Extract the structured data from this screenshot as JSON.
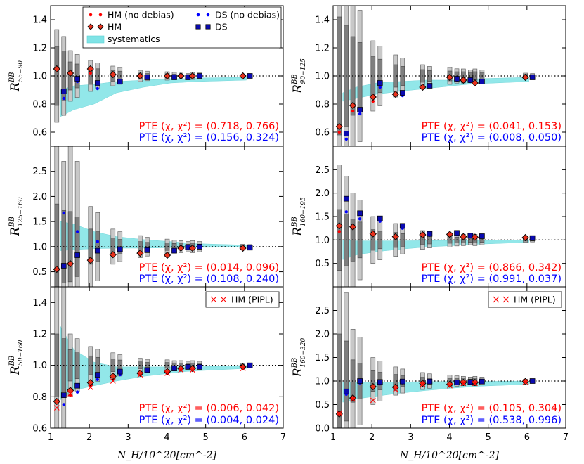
{
  "chart_data": {
    "type": "scatter",
    "x": [
      1.25,
      1.6,
      2.12,
      2.7,
      3.4,
      4.1,
      4.45,
      4.75,
      6.05
    ],
    "xlabel": "N_H/10^20[cm^-2]",
    "xlim": [
      1,
      7
    ],
    "xticks": [
      "1",
      "2",
      "3",
      "4",
      "5",
      "6",
      "7"
    ],
    "colors": {
      "hm": "#ff0000",
      "ds": "#0000ff",
      "syst": "#7fe3e6",
      "box_light": "#c8c8c8",
      "box_dark": "#7f7f7f"
    },
    "legend_main": {
      "hm_nodebias": "HM (no debias)",
      "ds_nodebias": "DS (no debias)",
      "hm": "HM",
      "ds": "DS",
      "systematics": "systematics"
    },
    "legend_pipl": "HM (PIPL)",
    "panels": [
      {
        "ylabel_main": "R",
        "ylabel_sup": "BB",
        "ylabel_sub": "55−90",
        "ylim": [
          0.5,
          1.5
        ],
        "yticks": [
          "0.6",
          "0.8",
          "1.0",
          "1.2",
          "1.4"
        ],
        "hm": [
          1.05,
          1.02,
          1.05,
          1.01,
          1.0,
          1.0,
          1.0,
          1.0,
          1.0
        ],
        "hm_nodebias": [
          1.05,
          1.01,
          1.02,
          1.02,
          1.0,
          1.01,
          1.0,
          1.0,
          1.0
        ],
        "ds": [
          0.89,
          0.98,
          0.95,
          0.96,
          0.99,
          0.99,
          0.99,
          1.0,
          1.0
        ],
        "ds_nodebias": [
          0.84,
          0.96,
          0.91,
          0.96,
          0.99,
          1.0,
          0.99,
          1.0,
          1.0
        ],
        "hm_pipl": null,
        "err_light": [
          0.33,
          0.18,
          0.11,
          0.07,
          0.04,
          0.03,
          0.02,
          0.025,
          0.01
        ],
        "err_dark": [
          0.21,
          0.1,
          0.06,
          0.04,
          0.02,
          0.015,
          0.012,
          0.012,
          0.006
        ],
        "syst_lower": [
          0.71,
          0.76,
          0.8,
          0.88,
          0.92,
          0.95,
          0.955,
          0.96,
          0.97
        ],
        "syst_upper": [
          0.9,
          0.93,
          0.94,
          0.96,
          0.97,
          0.98,
          0.98,
          0.985,
          0.99
        ],
        "pte_hm": "PTE (χ, χ²) = (0.718, 0.766)",
        "pte_ds": "PTE (χ, χ²) = (0.156, 0.324)"
      },
      {
        "ylabel_main": "R",
        "ylabel_sup": "BB",
        "ylabel_sub": "90−125",
        "ylim": [
          0.5,
          1.5
        ],
        "yticks": [
          "0.6",
          "0.8",
          "1.0",
          "1.2",
          "1.4"
        ],
        "hm": [
          0.64,
          0.79,
          0.85,
          0.87,
          0.92,
          0.99,
          0.97,
          0.95,
          0.99
        ],
        "hm_nodebias": [
          0.6,
          0.75,
          0.82,
          0.86,
          0.91,
          0.98,
          0.96,
          0.95,
          0.99
        ],
        "ds": [
          0.59,
          0.76,
          0.95,
          0.88,
          0.93,
          0.98,
          0.97,
          0.96,
          0.99
        ],
        "ds_nodebias": [
          0.55,
          0.73,
          0.92,
          0.86,
          0.93,
          0.97,
          0.96,
          0.96,
          0.99
        ],
        "hm_pipl": null,
        "err_light": [
          1.1,
          0.55,
          0.25,
          0.15,
          0.08,
          0.06,
          0.05,
          0.05,
          0.02
        ],
        "err_dark": [
          0.42,
          0.28,
          0.14,
          0.08,
          0.045,
          0.035,
          0.03,
          0.03,
          0.012
        ],
        "syst_lower": [
          0.82,
          0.84,
          0.87,
          0.89,
          0.91,
          0.93,
          0.94,
          0.945,
          0.96
        ],
        "syst_upper": [
          0.88,
          0.92,
          0.95,
          0.96,
          0.97,
          0.97,
          0.975,
          0.98,
          0.99
        ],
        "pte_hm": "PTE (χ, χ²) = (0.041, 0.153)",
        "pte_ds": "PTE (χ, χ²) = (0.008, 0.050)"
      },
      {
        "ylabel_main": "R",
        "ylabel_sup": "BB",
        "ylabel_sub": "125−160",
        "ylim": [
          0.2,
          3.0
        ],
        "yticks": [
          "0.5",
          "1.0",
          "1.5",
          "2.0",
          "2.5"
        ],
        "hm": [
          0.55,
          0.66,
          0.73,
          0.84,
          0.87,
          0.83,
          0.97,
          0.97,
          0.97
        ],
        "hm_nodebias": [
          0.53,
          0.63,
          0.72,
          0.83,
          0.87,
          0.82,
          0.96,
          0.97,
          0.97
        ],
        "ds": [
          0.62,
          0.83,
          0.92,
          0.95,
          0.93,
          0.92,
          0.99,
          1.0,
          0.98
        ],
        "ds_nodebias": [
          1.67,
          1.3,
          1.1,
          0.93,
          0.92,
          0.91,
          0.97,
          0.99,
          0.97
        ],
        "hm_pipl": null,
        "err_light": [
          2.0,
          2.0,
          0.8,
          0.35,
          0.22,
          0.15,
          0.12,
          0.12,
          0.05
        ],
        "err_dark": [
          0.85,
          0.7,
          0.35,
          0.17,
          0.1,
          0.075,
          0.06,
          0.06,
          0.03
        ],
        "syst_lower": [
          0.92,
          0.94,
          0.96,
          0.97,
          0.97,
          0.98,
          0.98,
          0.985,
          0.99
        ],
        "syst_upper": [
          1.5,
          1.45,
          1.3,
          1.2,
          1.14,
          1.1,
          1.08,
          1.06,
          1.03
        ],
        "pte_hm": "PTE (χ, χ²) = (0.014, 0.096)",
        "pte_ds": "PTE (χ, χ²) = (0.108, 0.240)"
      },
      {
        "ylabel_main": "R",
        "ylabel_sup": "BB",
        "ylabel_sub": "160−195",
        "ylim": [
          0.0,
          3.0
        ],
        "yticks": [
          "0.5",
          "1.0",
          "1.5",
          "2.0",
          "2.5"
        ],
        "hm": [
          1.3,
          1.28,
          1.13,
          1.07,
          1.11,
          1.12,
          1.07,
          1.06,
          1.05
        ],
        "hm_nodebias": [
          1.18,
          1.25,
          1.12,
          1.05,
          1.1,
          1.1,
          1.07,
          1.05,
          1.04
        ],
        "ds": [
          1.88,
          1.57,
          1.46,
          1.3,
          1.13,
          1.15,
          1.09,
          1.08,
          1.04
        ],
        "ds_nodebias": [
          1.6,
          1.45,
          1.4,
          1.25,
          1.1,
          1.11,
          1.07,
          1.06,
          1.03
        ],
        "hm_pipl": null,
        "err_light": [
          1.6,
          1.0,
          0.5,
          0.35,
          0.2,
          0.15,
          0.12,
          0.12,
          0.05
        ],
        "err_dark": [
          0.65,
          0.45,
          0.22,
          0.16,
          0.1,
          0.07,
          0.06,
          0.06,
          0.025
        ],
        "syst_lower": [
          0.58,
          0.68,
          0.75,
          0.8,
          0.85,
          0.88,
          0.9,
          0.91,
          0.95
        ],
        "syst_upper": [
          1.0,
          0.98,
          0.98,
          0.98,
          0.985,
          0.99,
          0.99,
          0.99,
          1.0
        ],
        "pte_hm": "PTE (χ, χ²) = (0.866, 0.342)",
        "pte_ds": "PTE (χ, χ²) = (0.991, 0.037)"
      },
      {
        "ylabel_main": "R",
        "ylabel_sup": "BB",
        "ylabel_sub": "50−160",
        "ylim": [
          0.6,
          1.5
        ],
        "yticks": [
          "0.6",
          "0.8",
          "1.0",
          "1.2",
          "1.4"
        ],
        "hm": [
          0.77,
          0.84,
          0.89,
          0.93,
          0.95,
          0.96,
          0.98,
          0.98,
          0.99
        ],
        "hm_nodebias": [
          0.76,
          0.81,
          0.87,
          0.91,
          0.94,
          0.96,
          0.97,
          0.98,
          0.99
        ],
        "ds": [
          0.81,
          0.87,
          0.94,
          0.96,
          0.97,
          0.98,
          0.99,
          0.99,
          1.0
        ],
        "ds_nodebias": [
          0.75,
          0.83,
          0.91,
          0.94,
          0.97,
          0.98,
          0.99,
          0.99,
          1.0
        ],
        "hm_pipl": [
          0.73,
          0.82,
          0.86,
          0.9,
          0.94,
          0.95,
          0.97,
          0.97,
          0.98
        ],
        "err_light": [
          0.6,
          0.2,
          0.12,
          0.08,
          0.045,
          0.035,
          0.03,
          0.03,
          0.012
        ],
        "err_dark": [
          0.2,
          0.1,
          0.06,
          0.04,
          0.022,
          0.018,
          0.015,
          0.015,
          0.006
        ],
        "syst_lower": [
          0.78,
          0.84,
          0.87,
          0.9,
          0.93,
          0.95,
          0.96,
          0.965,
          0.98
        ],
        "syst_upper": [
          1.25,
          1.1,
          1.02,
          0.99,
          0.99,
          0.99,
          0.99,
          0.99,
          1.0
        ],
        "pte_hm": "PTE (χ, χ²) = (0.006, 0.042)",
        "pte_ds": "PTE (χ, χ²) = (0.004, 0.024)"
      },
      {
        "ylabel_main": "R",
        "ylabel_sup": "BB",
        "ylabel_sub": "160−320",
        "ylim": [
          0.0,
          3.0
        ],
        "yticks": [
          "0.0",
          "0.5",
          "1.0",
          "1.5",
          "2.0",
          "2.5"
        ],
        "hm": [
          0.3,
          0.64,
          0.88,
          0.87,
          0.95,
          0.93,
          0.97,
          0.97,
          0.99
        ],
        "hm_nodebias": [
          0.28,
          0.61,
          0.85,
          0.84,
          0.94,
          0.92,
          0.96,
          0.97,
          0.99
        ],
        "ds": [
          0.78,
          1.0,
          0.98,
          0.99,
          0.99,
          0.97,
          0.98,
          0.99,
          1.0
        ],
        "ds_nodebias": [
          0.72,
          0.96,
          0.94,
          0.96,
          0.98,
          0.96,
          0.97,
          0.98,
          0.99
        ],
        "hm_pipl": [
          0.31,
          0.62,
          0.59,
          0.82,
          0.93,
          0.9,
          0.95,
          0.95,
          0.98
        ],
        "err_light": [
          2.2,
          1.1,
          0.5,
          0.3,
          0.18,
          0.13,
          0.1,
          0.1,
          0.04
        ],
        "err_dark": [
          1.0,
          0.45,
          0.22,
          0.14,
          0.08,
          0.06,
          0.05,
          0.05,
          0.02
        ],
        "syst_lower": [
          0.55,
          0.62,
          0.68,
          0.74,
          0.8,
          0.85,
          0.87,
          0.89,
          0.93
        ],
        "syst_upper": [
          0.98,
          0.98,
          0.98,
          0.98,
          0.985,
          0.99,
          0.99,
          0.99,
          1.0
        ],
        "pte_hm": "PTE (χ, χ²) = (0.105, 0.304)",
        "pte_ds": "PTE (χ, χ²) = (0.538, 0.996)"
      }
    ]
  }
}
